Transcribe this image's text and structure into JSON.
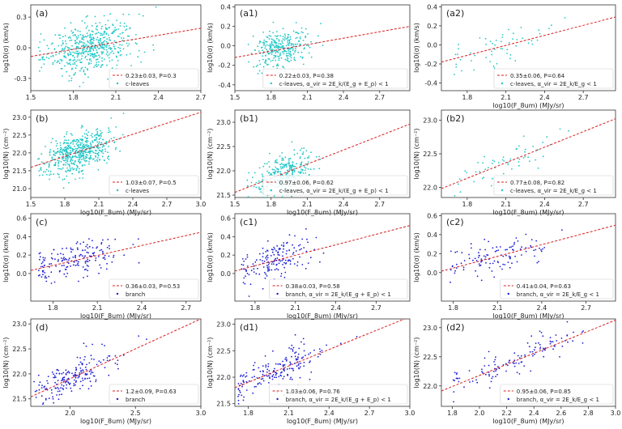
{
  "figure": {
    "rows": 4,
    "cols": 3
  },
  "chart_data": [
    {
      "type": "scatter",
      "panel": "(a)",
      "xlabel": "",
      "ylabel": "log10(σ) (km/s)",
      "xlim": [
        1.5,
        2.7
      ],
      "ylim": [
        -0.42,
        0.42
      ],
      "xticks": [
        1.5,
        1.8,
        2.1,
        2.4,
        2.7
      ],
      "xtick_labels": [
        "1.5",
        "1.8",
        "2.1",
        "2.4",
        "2.7"
      ],
      "yticks": [
        -0.3,
        0.0,
        0.3
      ],
      "ytick_labels": [
        "-0.3",
        "0.0",
        "0.3"
      ],
      "fit": {
        "slope": 0.23,
        "intercept": -0.43,
        "label": "0.23±0.03, P=0.3"
      },
      "series": [
        {
          "name": "c-leaves",
          "color": "#22c7c7",
          "n": 520,
          "x_center": 1.92,
          "x_spread": 0.16,
          "x_min": 1.55,
          "x_max": 2.68,
          "y_scatter": 0.12
        }
      ],
      "legend": {
        "position": "lower-right",
        "entries": [
          "0.23±0.03, P=0.3",
          "c-leaves"
        ]
      }
    },
    {
      "type": "scatter",
      "panel": "(a1)",
      "xlabel": "",
      "ylabel": "log10(σ) (km/s)",
      "xlim": [
        1.5,
        2.95
      ],
      "ylim": [
        -0.46,
        0.42
      ],
      "xticks": [
        1.5,
        1.8,
        2.1,
        2.4,
        2.7
      ],
      "xtick_labels": [
        "1.5",
        "1.8",
        "2.1",
        "2.4",
        "2.7"
      ],
      "yticks": [
        -0.4,
        -0.2,
        0.0,
        0.2,
        0.4
      ],
      "ytick_labels": [
        "-0.4",
        "-0.2",
        "0.0",
        "0.2",
        "0.4"
      ],
      "fit": {
        "slope": 0.22,
        "intercept": -0.45,
        "label": "0.22±0.03, P=0.38"
      },
      "series": [
        {
          "name": "c-leaves, α_vir = 2E_k/(E_g + E_p) < 1",
          "color": "#22c7c7",
          "n": 300,
          "x_center": 1.88,
          "x_spread": 0.11,
          "x_min": 1.6,
          "x_max": 2.85,
          "y_scatter": 0.1
        }
      ],
      "legend": {
        "position": "lower-right",
        "entries": [
          "0.22±0.03, P=0.38",
          "c-leaves, α_vir = 2E_k/(E_g + E_p) < 1"
        ]
      }
    },
    {
      "type": "scatter",
      "panel": "(a2)",
      "xlabel": "log10(F_8um) (MJy/sr)",
      "ylabel": "log10(σ) (km/s)",
      "xlim": [
        1.6,
        2.95
      ],
      "ylim": [
        -0.48,
        0.42
      ],
      "xticks": [
        1.8,
        2.1,
        2.4,
        2.7
      ],
      "xtick_labels": [
        "1.8",
        "2.1",
        "2.4",
        "2.7"
      ],
      "yticks": [
        -0.4,
        -0.2,
        0.0,
        0.2,
        0.4
      ],
      "ytick_labels": [
        "-0.4",
        "-0.2",
        "0.0",
        "0.2",
        "0.4"
      ],
      "fit": {
        "slope": 0.35,
        "intercept": -0.74,
        "label": "0.35±0.06, P=0.64"
      },
      "series": [
        {
          "name": "c-leaves, α_vir = 2E_k/E_g < 1",
          "color": "#22c7c7",
          "n": 55,
          "x_center": 2.1,
          "x_spread": 0.22,
          "x_min": 1.7,
          "x_max": 2.8,
          "y_scatter": 0.1
        }
      ],
      "legend": {
        "position": "lower-right",
        "entries": [
          "0.35±0.06, P=0.64",
          "c-leaves, α_vir = 2E_k/E_g < 1"
        ]
      }
    },
    {
      "type": "scatter",
      "panel": "(b)",
      "xlabel": "log10(F_8um) (MJy/sr)",
      "ylabel": "log10(N) (cm⁻²)",
      "xlim": [
        1.5,
        3.0
      ],
      "ylim": [
        20.75,
        23.2
      ],
      "xticks": [
        1.5,
        1.8,
        2.1,
        2.4,
        2.7,
        3.0
      ],
      "xtick_labels": [
        "1.5",
        "1.8",
        "2.1",
        "2.4",
        "2.7",
        "3.0"
      ],
      "yticks": [
        21.0,
        21.5,
        22.0,
        22.5,
        23.0
      ],
      "ytick_labels": [
        "21.0",
        "21.5",
        "22.0",
        "22.5",
        "23.0"
      ],
      "fit": {
        "slope": 1.03,
        "intercept": 20.05,
        "label": "1.03±0.07, P=0.5"
      },
      "series": [
        {
          "name": "c-leaves",
          "color": "#22c7c7",
          "n": 520,
          "x_center": 1.92,
          "x_spread": 0.16,
          "x_min": 1.55,
          "x_max": 2.95,
          "y_scatter": 0.28
        }
      ],
      "legend": {
        "position": "lower-right",
        "entries": [
          "1.03±0.07, P=0.5",
          "c-leaves"
        ]
      }
    },
    {
      "type": "scatter",
      "panel": "(b1)",
      "xlabel": "log10(F_8um) (MJy/sr)",
      "ylabel": "log10(N) (cm⁻²)",
      "xlim": [
        1.5,
        2.95
      ],
      "ylim": [
        21.45,
        23.25
      ],
      "xticks": [
        1.5,
        1.8,
        2.1,
        2.4,
        2.7
      ],
      "xtick_labels": [
        "1.5",
        "1.8",
        "2.1",
        "2.4",
        "2.7"
      ],
      "yticks": [
        21.5,
        22.0,
        22.5,
        23.0
      ],
      "ytick_labels": [
        "21.5",
        "22.0",
        "22.5",
        "23.0"
      ],
      "fit": {
        "slope": 0.97,
        "intercept": 20.1,
        "label": "0.97±0.06, P=0.62"
      },
      "series": [
        {
          "name": "c-leaves, α_vir = 2E_k/(E_g + E_p) < 1",
          "color": "#22c7c7",
          "n": 300,
          "x_center": 1.9,
          "x_spread": 0.12,
          "x_min": 1.6,
          "x_max": 2.85,
          "y_scatter": 0.22
        }
      ],
      "legend": {
        "position": "lower-right",
        "entries": [
          "0.97±0.06, P=0.62",
          "c-leaves, α_vir = 2E_k/(E_g + E_p) < 1"
        ]
      }
    },
    {
      "type": "scatter",
      "panel": "(b2)",
      "xlabel": "log10(F_8um) (MJy/sr)",
      "ylabel": "log10(N) (cm⁻²)",
      "xlim": [
        1.6,
        2.95
      ],
      "ylim": [
        21.85,
        23.15
      ],
      "xticks": [
        1.8,
        2.1,
        2.4,
        2.7
      ],
      "xtick_labels": [
        "1.8",
        "2.1",
        "2.4",
        "2.7"
      ],
      "yticks": [
        22.0,
        22.5,
        23.0
      ],
      "ytick_labels": [
        "22.0",
        "22.5",
        "23.0"
      ],
      "fit": {
        "slope": 0.77,
        "intercept": 20.75,
        "label": "0.77±0.08, P=0.82"
      },
      "series": [
        {
          "name": "c-leaves, α_vir = 2E_k/E_g < 1",
          "color": "#22c7c7",
          "n": 55,
          "x_center": 2.1,
          "x_spread": 0.22,
          "x_min": 1.7,
          "x_max": 2.85,
          "y_scatter": 0.12
        }
      ],
      "legend": {
        "position": "lower-right",
        "entries": [
          "0.77±0.08, P=0.82",
          "c-leaves, α_vir = 2E_k/E_g < 1"
        ]
      }
    },
    {
      "type": "scatter",
      "panel": "(c)",
      "xlabel": "log10(F_8um) (MJy/sr)",
      "ylabel": "log10(σ) (km/s)",
      "xlim": [
        1.65,
        2.8
      ],
      "ylim": [
        -0.3,
        0.65
      ],
      "xticks": [
        1.8,
        2.1,
        2.4,
        2.7
      ],
      "xtick_labels": [
        "1.8",
        "2.1",
        "2.4",
        "2.7"
      ],
      "yticks": [
        0.0,
        0.2,
        0.4,
        0.6
      ],
      "ytick_labels": [
        "0.0",
        "0.2",
        "0.4",
        "0.6"
      ],
      "fit": {
        "slope": 0.36,
        "intercept": -0.56,
        "label": "0.36±0.03, P=0.53"
      },
      "series": [
        {
          "name": "branch",
          "color": "#1f1fd6",
          "n": 170,
          "x_center": 1.95,
          "x_spread": 0.15,
          "x_min": 1.7,
          "x_max": 2.7,
          "y_scatter": 0.1
        }
      ],
      "legend": {
        "position": "lower-right",
        "entries": [
          "0.36±0.03, P=0.53",
          "branch"
        ]
      }
    },
    {
      "type": "scatter",
      "panel": "(c1)",
      "xlabel": "log10(F_8um) (MJy/sr)",
      "ylabel": "log10(σ) (km/s)",
      "xlim": [
        1.65,
        2.95
      ],
      "ylim": [
        -0.3,
        0.65
      ],
      "xticks": [
        1.8,
        2.1,
        2.4,
        2.7
      ],
      "xtick_labels": [
        "1.8",
        "2.1",
        "2.4",
        "2.7"
      ],
      "yticks": [
        0.0,
        0.2,
        0.4,
        0.6
      ],
      "ytick_labels": [
        "0.0",
        "0.2",
        "0.4",
        "0.6"
      ],
      "fit": {
        "slope": 0.38,
        "intercept": -0.6,
        "label": "0.38±0.03, P=0.58"
      },
      "series": [
        {
          "name": "branch, α_vir = 2E_k/(E_g + E_p) < 1",
          "color": "#1f1fd6",
          "n": 160,
          "x_center": 1.95,
          "x_spread": 0.15,
          "x_min": 1.7,
          "x_max": 2.8,
          "y_scatter": 0.1
        }
      ],
      "legend": {
        "position": "lower-right",
        "entries": [
          "0.38±0.03, P=0.58",
          "branch, α_vir = 2E_k/(E_g + E_p) < 1"
        ]
      }
    },
    {
      "type": "scatter",
      "panel": "(c2)",
      "xlabel": "log10(F_8um) (MJy/sr)",
      "ylabel": "log10(σ) (km/s)",
      "xlim": [
        1.72,
        2.9
      ],
      "ylim": [
        -0.3,
        0.62
      ],
      "xticks": [
        1.8,
        2.1,
        2.4,
        2.7
      ],
      "xtick_labels": [
        "1.8",
        "2.1",
        "2.4",
        "2.7"
      ],
      "yticks": [
        0.0,
        0.2,
        0.4,
        0.6
      ],
      "ytick_labels": [
        "0.0",
        "0.2",
        "0.4",
        "0.6"
      ],
      "fit": {
        "slope": 0.41,
        "intercept": -0.69,
        "label": "0.41±0.04, P=0.63"
      },
      "series": [
        {
          "name": "branch, α_vir = 2E_k/E_g < 1",
          "color": "#1f1fd6",
          "n": 110,
          "x_center": 2.1,
          "x_spread": 0.2,
          "x_min": 1.78,
          "x_max": 2.82,
          "y_scatter": 0.09
        }
      ],
      "legend": {
        "position": "lower-right",
        "entries": [
          "0.41±0.04, P=0.63",
          "branch, α_vir = 2E_k/E_g < 1"
        ]
      }
    },
    {
      "type": "scatter",
      "panel": "(d)",
      "xlabel": "log10(F_8um) (MJy/sr)",
      "ylabel": "log10(N) (cm⁻²)",
      "xlim": [
        1.7,
        3.0
      ],
      "ylim": [
        21.35,
        23.1
      ],
      "xticks": [
        2.0,
        2.5,
        3.0
      ],
      "xtick_labels": [
        "2.0",
        "2.5",
        "3.0"
      ],
      "yticks": [
        21.5,
        22.0,
        22.5,
        23.0
      ],
      "ytick_labels": [
        "21.5",
        "22.0",
        "22.5",
        "23.0"
      ],
      "fit": {
        "slope": 1.2,
        "intercept": 19.5,
        "label": "1.2±0.09, P=0.63"
      },
      "series": [
        {
          "name": "branch",
          "color": "#1f1fd6",
          "n": 190,
          "x_center": 2.0,
          "x_spread": 0.18,
          "x_min": 1.72,
          "x_max": 2.9,
          "y_scatter": 0.18
        }
      ],
      "legend": {
        "position": "lower-right",
        "entries": [
          "1.2±0.09, P=0.63",
          "branch"
        ]
      }
    },
    {
      "type": "scatter",
      "panel": "(d1)",
      "xlabel": "log10(F_8um) (MJy/sr)",
      "ylabel": "log10(N) (cm⁻²)",
      "xlim": [
        1.7,
        3.0
      ],
      "ylim": [
        21.45,
        23.1
      ],
      "xticks": [
        1.8,
        2.1,
        2.4,
        2.7,
        3.0
      ],
      "xtick_labels": [
        "1.8",
        "2.1",
        "2.4",
        "2.7",
        "3.0"
      ],
      "yticks": [
        21.5,
        22.0,
        22.5,
        23.0
      ],
      "ytick_labels": [
        "21.5",
        "22.0",
        "22.5",
        "23.0"
      ],
      "fit": {
        "slope": 1.03,
        "intercept": 20.05,
        "label": "1.03±0.06, P=0.76"
      },
      "series": [
        {
          "name": "branch, α_vir = 2E_k/(E_g + E_p) < 1",
          "color": "#1f1fd6",
          "n": 180,
          "x_center": 2.0,
          "x_spread": 0.2,
          "x_min": 1.72,
          "x_max": 2.95,
          "y_scatter": 0.17
        }
      ],
      "legend": {
        "position": "lower-right",
        "entries": [
          "1.03±0.06, P=0.76",
          "branch, α_vir = 2E_k/(E_g + E_p) < 1"
        ]
      }
    },
    {
      "type": "scatter",
      "panel": "(d2)",
      "xlabel": "log10(F_8um) (MJy/sr)",
      "ylabel": "log10(N) (cm⁻²)",
      "xlim": [
        1.72,
        3.0
      ],
      "ylim": [
        21.65,
        23.15
      ],
      "xticks": [
        1.8,
        2.0,
        2.2,
        2.4,
        2.6,
        2.8,
        3.0
      ],
      "xtick_labels": [
        "1.8",
        "2.0",
        "2.2",
        "2.4",
        "2.6",
        "2.8",
        "3.0"
      ],
      "yticks": [
        22.0,
        22.5,
        23.0
      ],
      "ytick_labels": [
        "22.0",
        "22.5",
        "23.0"
      ],
      "fit": {
        "slope": 0.95,
        "intercept": 20.28,
        "label": "0.95±0.06, P=0.85"
      },
      "series": [
        {
          "name": "branch, α_vir = 2E_k/E_g < 1",
          "color": "#1f1fd6",
          "n": 120,
          "x_center": 2.25,
          "x_spread": 0.25,
          "x_min": 1.8,
          "x_max": 2.95,
          "y_scatter": 0.14
        }
      ],
      "legend": {
        "position": "lower-right",
        "entries": [
          "0.95±0.06, P=0.85",
          "branch, α_vir = 2E_k/E_g < 1"
        ]
      }
    }
  ]
}
